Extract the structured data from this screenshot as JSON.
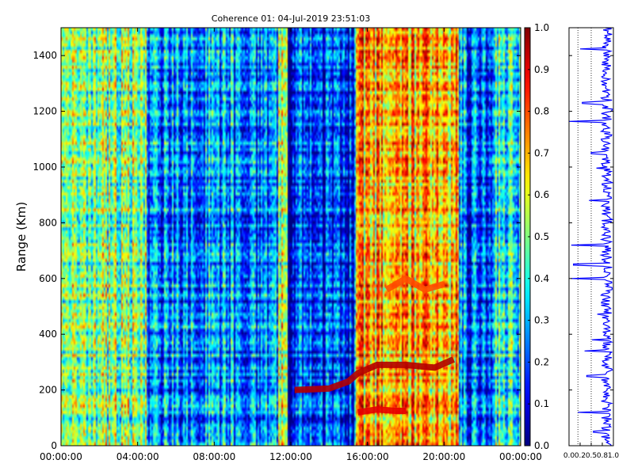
{
  "chart_data": {
    "type": "heatmap",
    "title": "Coherence 01: 04-Jul-2019 23:51:03",
    "xlabel": "",
    "ylabel": "Range (Km)",
    "x_ticks": [
      "00:00:00",
      "04:00:00",
      "08:00:00",
      "12:00:00",
      "16:00:00",
      "20:00:00",
      "00:00:00"
    ],
    "x_range_hours": [
      0,
      24
    ],
    "y_ticks": [
      0,
      200,
      400,
      600,
      800,
      1000,
      1200,
      1400
    ],
    "y_range": [
      0,
      1500
    ],
    "colorbar": {
      "ticks": [
        "0.0",
        "0.1",
        "0.2",
        "0.3",
        "0.4",
        "0.5",
        "0.6",
        "0.7",
        "0.8",
        "0.9",
        "1.0"
      ],
      "range": [
        0,
        1
      ],
      "colormap": "jet"
    },
    "time_segments": [
      {
        "start_h": 0.0,
        "end_h": 4.5,
        "mean_coherence": 0.5
      },
      {
        "start_h": 4.5,
        "end_h": 11.3,
        "mean_coherence": 0.25
      },
      {
        "start_h": 11.3,
        "end_h": 11.8,
        "mean_coherence": 0.55
      },
      {
        "start_h": 11.8,
        "end_h": 12.2,
        "mean_coherence": 0.03
      },
      {
        "start_h": 12.2,
        "end_h": 15.4,
        "mean_coherence": 0.15
      },
      {
        "start_h": 15.4,
        "end_h": 20.8,
        "mean_coherence": 0.68
      },
      {
        "start_h": 20.8,
        "end_h": 22.5,
        "mean_coherence": 0.22
      },
      {
        "start_h": 22.5,
        "end_h": 24.0,
        "mean_coherence": 0.38
      }
    ],
    "layer_traces": [
      {
        "points": [
          [
            12.2,
            200
          ],
          [
            14.0,
            205
          ],
          [
            15.0,
            230
          ],
          [
            15.5,
            260
          ],
          [
            16.5,
            290
          ],
          [
            18.0,
            290
          ],
          [
            19.5,
            280
          ],
          [
            20.5,
            310
          ]
        ],
        "value": 0.95
      },
      {
        "points": [
          [
            15.5,
            120
          ],
          [
            16.5,
            130
          ],
          [
            17.5,
            125
          ],
          [
            18.0,
            125
          ]
        ],
        "value": 0.9
      },
      {
        "points": [
          [
            17.0,
            560
          ],
          [
            18.0,
            600
          ],
          [
            19.0,
            560
          ],
          [
            20.0,
            580
          ]
        ],
        "value": 0.8
      }
    ],
    "side_profile": {
      "x_ticks": [
        "0.0",
        "0.2",
        "0.5",
        "0.8",
        "1.0"
      ],
      "x_range": [
        0,
        1
      ],
      "y_range": [
        0,
        1500
      ],
      "color": "#0000ff",
      "mean_value": 0.85,
      "dips": [
        {
          "range_km": 1165,
          "value": 0.0
        },
        {
          "range_km": 720,
          "value": 0.05
        },
        {
          "range_km": 650,
          "value": 0.1
        },
        {
          "range_km": 600,
          "value": 0.05
        },
        {
          "range_km": 1425,
          "value": 0.25
        },
        {
          "range_km": 1230,
          "value": 0.3
        },
        {
          "range_km": 1050,
          "value": 0.5
        },
        {
          "range_km": 880,
          "value": 0.45
        },
        {
          "range_km": 340,
          "value": 0.35
        },
        {
          "range_km": 120,
          "value": 0.2
        },
        {
          "range_km": 250,
          "value": 0.4
        },
        {
          "range_km": 50,
          "value": 0.55
        }
      ]
    }
  }
}
